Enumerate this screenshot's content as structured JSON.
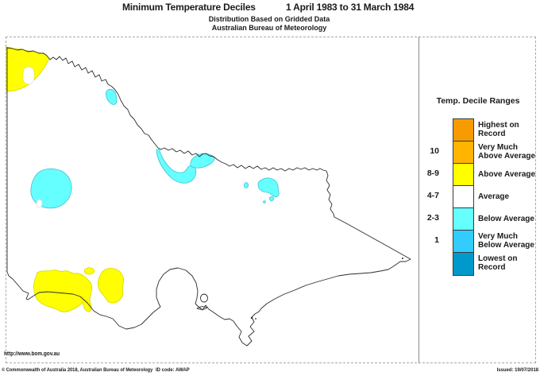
{
  "header": {
    "title_left": "Minimum Temperature Deciles",
    "title_right": "1 April 1983 to 31 March 1984",
    "subtitle1": "Distribution Based on Gridded Data",
    "subtitle2": "Australian Bureau of Meteorology"
  },
  "legend": {
    "title": "Temp. Decile Ranges",
    "items": [
      {
        "decile": "",
        "lines": [
          "Highest on",
          "Record"
        ],
        "color": "#F89B00"
      },
      {
        "decile": "10",
        "lines": [
          "Very Much",
          "Above Average"
        ],
        "color": "#FFB400"
      },
      {
        "decile": "8-9",
        "lines": [
          "Above Average"
        ],
        "color": "#FFFF00"
      },
      {
        "decile": "4-7",
        "lines": [
          "Average"
        ],
        "color": "#FFFFFF"
      },
      {
        "decile": "2-3",
        "lines": [
          "Below Average"
        ],
        "color": "#66FFFF"
      },
      {
        "decile": "1",
        "lines": [
          "Very Much",
          "Below Average"
        ],
        "color": "#33CCFF"
      },
      {
        "decile": "",
        "lines": [
          "Lowest on",
          "Record"
        ],
        "color": "#0099CC"
      }
    ]
  },
  "map": {
    "region_shown": "Victoria, Australia",
    "palette": {
      "above": "#FFFF00",
      "below": "#66FFFF",
      "land": "#FFFFFF",
      "border": "#2B2B2B"
    },
    "patches": [
      {
        "id": "northwest-corner",
        "category": "Above Average (deciles 8-9)"
      },
      {
        "id": "southwest-large",
        "category": "Above Average (deciles 8-9)"
      },
      {
        "id": "southwest-small",
        "category": "Above Average (deciles 8-9)"
      },
      {
        "id": "southwest-right",
        "category": "Above Average (deciles 8-9)"
      },
      {
        "id": "murray-teardrop",
        "category": "Below Average (deciles 2-3)"
      },
      {
        "id": "west-central-blob",
        "category": "Below Average (deciles 2-3)"
      },
      {
        "id": "murray-crescent",
        "category": "Below Average (deciles 2-3)"
      },
      {
        "id": "murray-lobe",
        "category": "Below Average (deciles 2-3)"
      },
      {
        "id": "northeast-blob",
        "category": "Below Average (deciles 2-3)"
      },
      {
        "id": "northeast-dots",
        "category": "Below Average (deciles 2-3)"
      }
    ]
  },
  "footer": {
    "url": "http://www.bom.gov.au",
    "copyright": "© Commonwealth of Australia 2018, Australian Bureau of Meteorology",
    "id_code": "ID code: AWAP",
    "issued": "Issued: 19/07/2018"
  }
}
